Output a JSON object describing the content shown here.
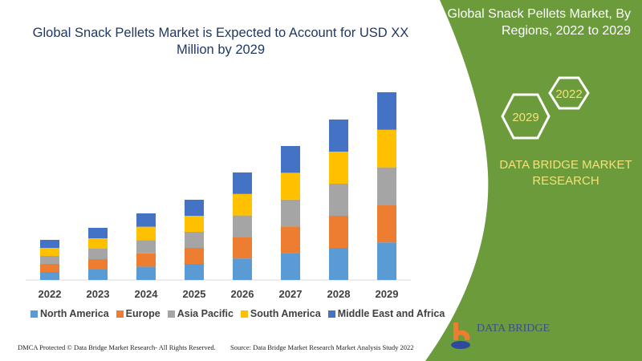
{
  "title": "Global Snack Pellets Market is Expected to Account for USD XX Million by 2029",
  "side_panel": {
    "title": "Global Snack Pellets Market, By Regions, 2022 to 2029",
    "hex_labels": [
      "2022",
      "2029"
    ],
    "brand": "DATA BRIDGE MARKET RESEARCH",
    "logo_text": "DATA BRIDGE",
    "color": "#6b9b3a"
  },
  "footer": {
    "left": "DMCA Protected © Data Bridge Market Research- All Rights Reserved.",
    "right": "Source: Data Bridge Market Research Market Analysis Study 2022"
  },
  "chart_data": {
    "type": "bar",
    "stacked": true,
    "categories": [
      "2022",
      "2023",
      "2024",
      "2025",
      "2026",
      "2027",
      "2028",
      "2029"
    ],
    "series": [
      {
        "name": "North America",
        "color": "#5b9bd5",
        "values": [
          10,
          13,
          16.6,
          20,
          26.8,
          33.4,
          40,
          46.8
        ]
      },
      {
        "name": "Europe",
        "color": "#ed7d31",
        "values": [
          10,
          13,
          16.6,
          20,
          26.8,
          33.4,
          40,
          46.8
        ]
      },
      {
        "name": "Asia Pacific",
        "color": "#a5a5a5",
        "values": [
          10,
          13,
          16.6,
          20,
          26.8,
          33.4,
          40,
          46.8
        ]
      },
      {
        "name": "South America",
        "color": "#ffc000",
        "values": [
          10,
          13,
          16.6,
          20,
          26.8,
          33.4,
          40,
          46.8
        ]
      },
      {
        "name": "Middle East and Africa",
        "color": "#4472c4",
        "values": [
          10,
          13,
          16.6,
          20,
          26.8,
          33.4,
          40,
          46.8
        ]
      }
    ],
    "legend": "bottom",
    "grid": false,
    "y_axis_shown": false
  }
}
